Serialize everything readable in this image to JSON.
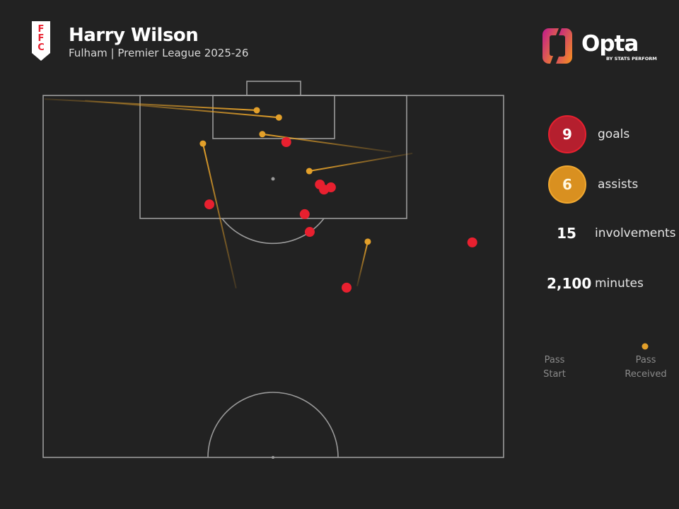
{
  "header": {
    "title": "Harry Wilson",
    "subtitle": "Fulham | Premier League 2025-26",
    "crest_text": "FFC",
    "logo_text": "Opta",
    "logo_sub": "BY STATS PERFORM"
  },
  "stats": [
    {
      "value": "9",
      "label": "goals",
      "color": "#b51f2e"
    },
    {
      "value": "6",
      "label": "assists",
      "color": "#d99020"
    },
    {
      "value": "15",
      "label": "involvements"
    },
    {
      "value": "2,100",
      "label": "minutes"
    }
  ],
  "legend": {
    "start": "Pass Start",
    "start_l1": "Pass",
    "start_l2": "Start",
    "end_l1": "Pass",
    "end_l2": "Received"
  },
  "colors": {
    "goal": "#e8202f",
    "assist": "#e3a02a",
    "line": "#9a9a9a",
    "bg": "#222222"
  },
  "chart_data": {
    "type": "scatter",
    "description_units": "x: 0-100 across pitch width (left to right), y: 0-100 distance from attacking goal line across half pitch",
    "goals": [
      {
        "x": 52.8,
        "y": 12.9
      },
      {
        "x": 60.1,
        "y": 24.6
      },
      {
        "x": 61.0,
        "y": 26.0
      },
      {
        "x": 62.5,
        "y": 25.4
      },
      {
        "x": 36.1,
        "y": 30.1
      },
      {
        "x": 56.8,
        "y": 32.8
      },
      {
        "x": 57.9,
        "y": 37.7
      },
      {
        "x": 93.2,
        "y": 40.6
      },
      {
        "x": 65.9,
        "y": 53.1
      }
    ],
    "assists": [
      {
        "start": {
          "x": 0.3,
          "y": 1.0
        },
        "end": {
          "x": 46.4,
          "y": 4.1
        }
      },
      {
        "start": {
          "x": 9.1,
          "y": 1.4
        },
        "end": {
          "x": 51.2,
          "y": 6.1
        }
      },
      {
        "start": {
          "x": 75.6,
          "y": 15.6
        },
        "end": {
          "x": 47.6,
          "y": 10.7
        }
      },
      {
        "start": {
          "x": 80.2,
          "y": 16.0
        },
        "end": {
          "x": 57.8,
          "y": 20.9
        }
      },
      {
        "start": {
          "x": 41.9,
          "y": 53.3
        },
        "end": {
          "x": 34.7,
          "y": 13.3
        }
      },
      {
        "start": {
          "x": 68.2,
          "y": 52.7
        },
        "end": {
          "x": 70.5,
          "y": 40.4
        }
      }
    ]
  }
}
